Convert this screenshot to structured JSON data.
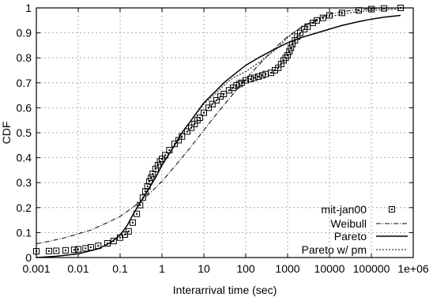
{
  "chart_data": {
    "type": "scatter",
    "title": "",
    "xlabel": "Interarrival time (sec)",
    "ylabel": "CDF",
    "x_scale": "log",
    "xlim": [
      0.001,
      1000000
    ],
    "ylim": [
      0,
      1
    ],
    "grid": true,
    "legend_position": "bottom-right",
    "x_ticks": [
      0.001,
      0.01,
      0.1,
      1,
      10,
      100,
      1000,
      10000,
      100000,
      1000000
    ],
    "x_tick_labels": [
      "0.001",
      "0.01",
      "0.1",
      "1",
      "10",
      "100",
      "1000",
      "10000",
      "100000",
      "1e+06"
    ],
    "y_ticks": [
      0,
      0.1,
      0.2,
      0.3,
      0.4,
      0.5,
      0.6,
      0.7,
      0.8,
      0.9,
      1
    ],
    "y_tick_labels": [
      "0",
      "0.1",
      "0.2",
      "0.3",
      "0.4",
      "0.5",
      "0.6",
      "0.7",
      "0.8",
      "0.9",
      "1"
    ],
    "series": [
      {
        "name": "mit-jan00",
        "style": "square-markers",
        "x": [
          0.001,
          0.002,
          0.003,
          0.005,
          0.008,
          0.01,
          0.015,
          0.02,
          0.03,
          0.05,
          0.07,
          0.1,
          0.13,
          0.16,
          0.2,
          0.25,
          0.3,
          0.35,
          0.4,
          0.45,
          0.5,
          0.55,
          0.6,
          0.7,
          0.8,
          0.9,
          1,
          1.2,
          1.5,
          2,
          2.5,
          3,
          4,
          5,
          6,
          7,
          8,
          10,
          13,
          16,
          20,
          25,
          30,
          40,
          50,
          60,
          70,
          80,
          100,
          130,
          160,
          200,
          250,
          300,
          400,
          500,
          600,
          700,
          800,
          900,
          1000,
          1100,
          1200,
          1300,
          1500,
          1700,
          2000,
          2500,
          3000,
          4000,
          5000,
          7000,
          10000,
          20000,
          50000,
          100000,
          200000,
          500000
        ],
        "y": [
          0.025,
          0.026,
          0.027,
          0.029,
          0.031,
          0.033,
          0.037,
          0.041,
          0.047,
          0.057,
          0.066,
          0.08,
          0.092,
          0.105,
          0.14,
          0.175,
          0.21,
          0.24,
          0.265,
          0.285,
          0.305,
          0.32,
          0.335,
          0.355,
          0.37,
          0.385,
          0.395,
          0.41,
          0.43,
          0.455,
          0.47,
          0.485,
          0.505,
          0.52,
          0.535,
          0.55,
          0.56,
          0.58,
          0.6,
          0.615,
          0.63,
          0.645,
          0.655,
          0.67,
          0.68,
          0.69,
          0.695,
          0.7,
          0.71,
          0.715,
          0.72,
          0.725,
          0.73,
          0.735,
          0.74,
          0.75,
          0.76,
          0.775,
          0.79,
          0.8,
          0.81,
          0.825,
          0.84,
          0.855,
          0.87,
          0.885,
          0.9,
          0.915,
          0.925,
          0.94,
          0.95,
          0.96,
          0.97,
          0.98,
          0.99,
          0.995,
          0.998,
          1.0
        ]
      },
      {
        "name": "Weibull",
        "style": "dash-dot",
        "x": [
          0.001,
          0.002,
          0.005,
          0.01,
          0.02,
          0.05,
          0.1,
          0.2,
          0.5,
          1,
          2,
          5,
          10,
          20,
          50,
          100,
          200,
          500,
          1000,
          2000,
          5000,
          10000,
          20000,
          50000,
          100000,
          200000,
          500000
        ],
        "y": [
          0.055,
          0.065,
          0.08,
          0.095,
          0.11,
          0.14,
          0.165,
          0.2,
          0.255,
          0.305,
          0.365,
          0.445,
          0.51,
          0.575,
          0.655,
          0.715,
          0.77,
          0.84,
          0.885,
          0.92,
          0.955,
          0.975,
          0.985,
          0.993,
          0.997,
          0.999,
          1.0
        ]
      },
      {
        "name": "Pareto",
        "style": "solid",
        "x": [
          0.001,
          0.003,
          0.01,
          0.03,
          0.06,
          0.1,
          0.15,
          0.2,
          0.3,
          0.5,
          0.7,
          1,
          2,
          3,
          5,
          10,
          20,
          30,
          50,
          100,
          200,
          500,
          1000,
          2000,
          5000,
          10000,
          20000,
          50000,
          100000,
          200000,
          500000
        ],
        "y": [
          0.0,
          0.005,
          0.015,
          0.035,
          0.06,
          0.09,
          0.13,
          0.17,
          0.22,
          0.28,
          0.32,
          0.37,
          0.45,
          0.5,
          0.55,
          0.62,
          0.67,
          0.7,
          0.73,
          0.77,
          0.8,
          0.835,
          0.86,
          0.88,
          0.9,
          0.915,
          0.93,
          0.945,
          0.955,
          0.963,
          0.97
        ]
      },
      {
        "name": "Pareto w/ pm",
        "style": "dotted",
        "x": [
          0.001,
          0.003,
          0.01,
          0.03,
          0.06,
          0.1,
          0.15,
          0.2,
          0.3,
          0.5,
          0.7,
          1,
          2,
          3,
          5,
          10,
          20,
          30,
          50,
          100,
          200,
          500,
          1000,
          2000,
          5000,
          10000,
          20000,
          50000,
          100000,
          200000,
          500000
        ],
        "y": [
          0.0,
          0.005,
          0.015,
          0.035,
          0.06,
          0.09,
          0.13,
          0.17,
          0.22,
          0.28,
          0.32,
          0.37,
          0.45,
          0.5,
          0.55,
          0.615,
          0.66,
          0.69,
          0.72,
          0.745,
          0.78,
          0.83,
          0.88,
          0.92,
          0.95,
          0.965,
          0.975,
          0.985,
          0.99,
          0.993,
          0.995
        ]
      }
    ]
  }
}
